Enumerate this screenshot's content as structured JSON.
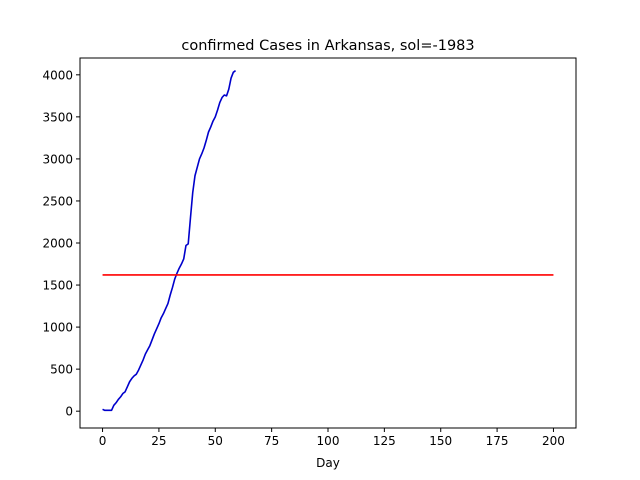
{
  "chart_data": {
    "type": "line",
    "title": "confirmed Cases in Arkansas, sol=-1983",
    "xlabel": "Day",
    "ylabel": "",
    "xlim": [
      -10,
      210
    ],
    "ylim": [
      -200,
      4200
    ],
    "xticks": [
      0,
      25,
      50,
      75,
      100,
      125,
      150,
      175,
      200
    ],
    "yticks": [
      0,
      500,
      1000,
      1500,
      2000,
      2500,
      3000,
      3500,
      4000
    ],
    "grid": false,
    "series": [
      {
        "color": "#0000cc",
        "x": [
          0,
          1,
          2,
          3,
          4,
          5,
          6,
          7,
          8,
          9,
          10,
          11,
          12,
          13,
          14,
          15,
          16,
          17,
          18,
          19,
          20,
          21,
          22,
          23,
          24,
          25,
          26,
          27,
          28,
          29,
          30,
          31,
          32,
          33,
          34,
          35,
          36,
          37,
          38,
          39,
          40,
          41,
          42,
          43,
          44,
          45,
          46,
          47,
          48,
          49,
          50,
          51,
          52,
          53,
          54,
          55,
          56,
          57,
          58,
          59
        ],
        "y": [
          22,
          10,
          10,
          10,
          10,
          70,
          100,
          140,
          170,
          210,
          230,
          290,
          350,
          390,
          420,
          440,
          490,
          550,
          610,
          680,
          730,
          780,
          850,
          920,
          980,
          1040,
          1110,
          1160,
          1220,
          1280,
          1380,
          1470,
          1570,
          1640,
          1700,
          1750,
          1810,
          1970,
          1990,
          2300,
          2600,
          2800,
          2900,
          3000,
          3060,
          3130,
          3220,
          3320,
          3380,
          3450,
          3500,
          3580,
          3670,
          3730,
          3760,
          3750,
          3830,
          3960,
          4030,
          4050
        ]
      },
      {
        "color": "#ff0000",
        "x": [
          0,
          200
        ],
        "y": [
          1620,
          1620
        ]
      }
    ]
  }
}
